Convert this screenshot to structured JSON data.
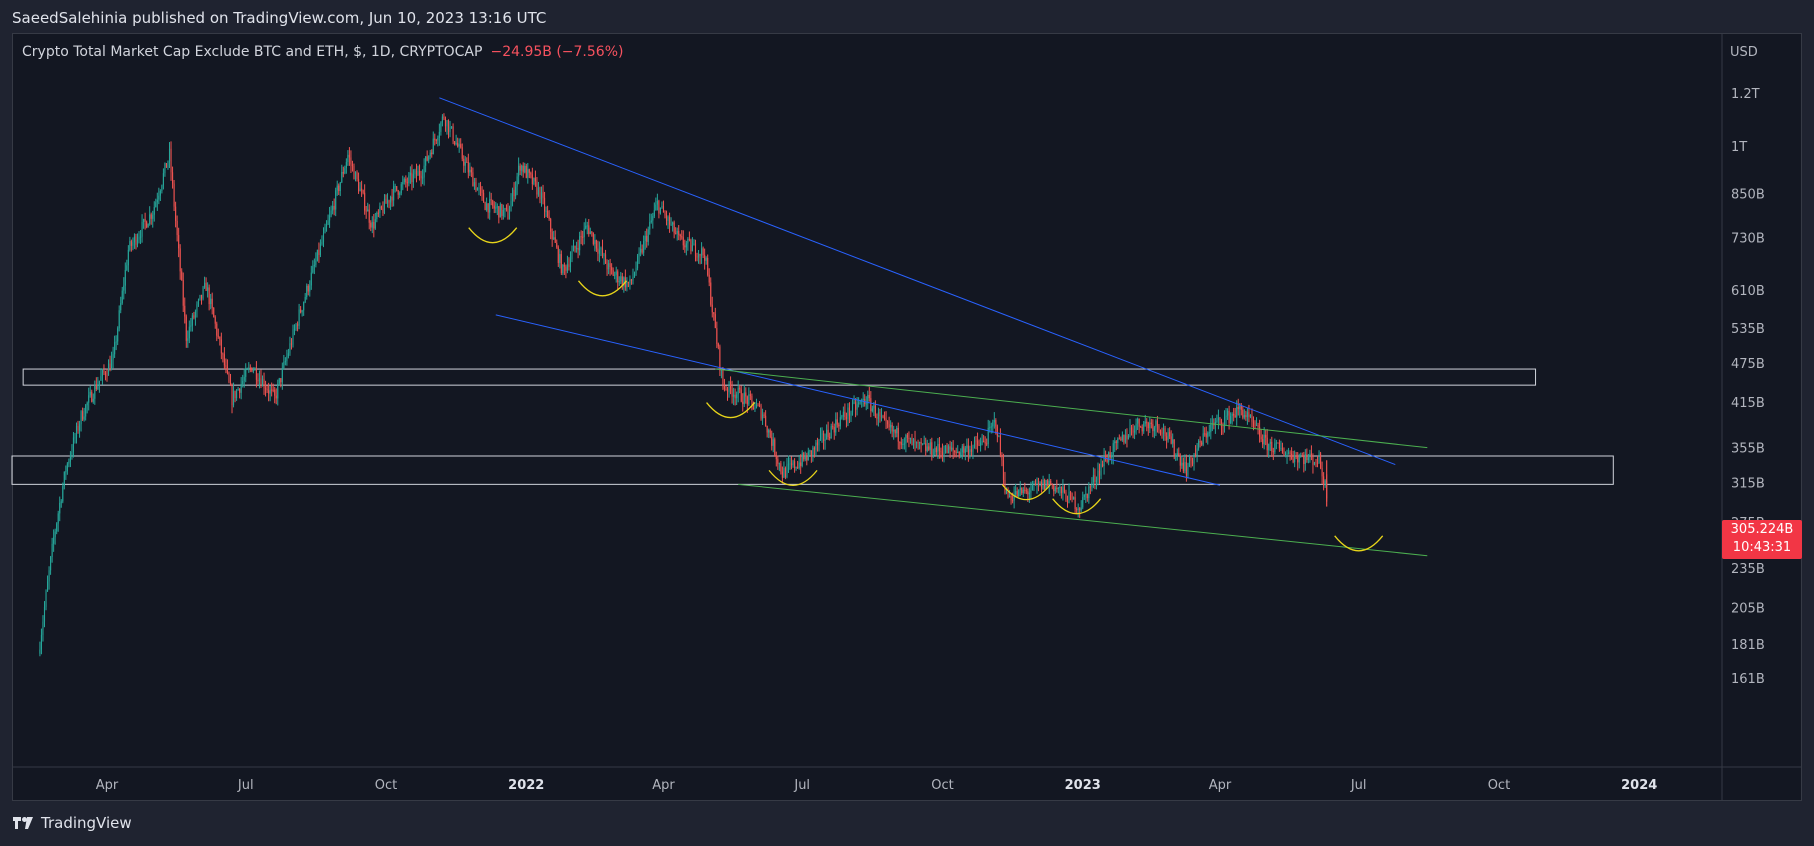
{
  "header": {
    "published": "SaeedSalehinia published on TradingView.com, Jun 10, 2023 13:16 UTC"
  },
  "legend": {
    "symbol": "Crypto Total Market Cap Exclude BTC and ETH, $, 1D, CRYPTOCAP",
    "change": "−24.95B (−7.56%)"
  },
  "price_tag": {
    "price": "305.224B",
    "countdown": "10:43:31"
  },
  "footer": {
    "brand": "TradingView"
  },
  "colors": {
    "up": "#26a69a",
    "down": "#ef5350",
    "trend_blue": "#2962ff",
    "trend_green": "#4caf50",
    "arc_yellow": "#e8d51a",
    "zone": "#d1d4dc"
  },
  "chart_data": {
    "type": "candlestick",
    "title": "Crypto Total Market Cap Exclude BTC and ETH, $, 1D, CRYPTOCAP",
    "y_axis": {
      "unit": "USD",
      "scale": "log",
      "ticks": [
        "1.2T",
        "1T",
        "850B",
        "730B",
        "610B",
        "535B",
        "475B",
        "415B",
        "355B",
        "315B",
        "275B",
        "235B",
        "205B",
        "181B",
        "161B"
      ]
    },
    "x_axis": {
      "ticks": [
        {
          "label": "Apr",
          "major": false
        },
        {
          "label": "Jul",
          "major": false
        },
        {
          "label": "Oct",
          "major": false
        },
        {
          "label": "2022",
          "major": true
        },
        {
          "label": "Apr",
          "major": false
        },
        {
          "label": "Jul",
          "major": false
        },
        {
          "label": "Oct",
          "major": false
        },
        {
          "label": "2023",
          "major": true
        },
        {
          "label": "Apr",
          "major": false
        },
        {
          "label": "Jul",
          "major": false
        },
        {
          "label": "Oct",
          "major": false
        },
        {
          "label": "2024",
          "major": true
        }
      ]
    },
    "price_path": [
      [
        "2021-02-15",
        175
      ],
      [
        "2021-02-25",
        260
      ],
      [
        "2021-03-05",
        330
      ],
      [
        "2021-03-15",
        395
      ],
      [
        "2021-03-25",
        440
      ],
      [
        "2021-04-05",
        480
      ],
      [
        "2021-04-15",
        700
      ],
      [
        "2021-05-01",
        800
      ],
      [
        "2021-05-12",
        970
      ],
      [
        "2021-05-23",
        520
      ],
      [
        "2021-06-05",
        620
      ],
      [
        "2021-06-22",
        420
      ],
      [
        "2021-07-05",
        470
      ],
      [
        "2021-07-20",
        420
      ],
      [
        "2021-08-05",
        560
      ],
      [
        "2021-08-25",
        780
      ],
      [
        "2021-09-06",
        970
      ],
      [
        "2021-09-22",
        760
      ],
      [
        "2021-10-05",
        850
      ],
      [
        "2021-10-25",
        920
      ],
      [
        "2021-11-08",
        1110
      ],
      [
        "2021-11-22",
        940
      ],
      [
        "2021-12-05",
        820
      ],
      [
        "2021-12-20",
        790
      ],
      [
        "2021-12-28",
        940
      ],
      [
        "2022-01-10",
        850
      ],
      [
        "2022-01-25",
        650
      ],
      [
        "2022-02-10",
        760
      ],
      [
        "2022-02-25",
        650
      ],
      [
        "2022-03-10",
        620
      ],
      [
        "2022-03-28",
        820
      ],
      [
        "2022-04-12",
        720
      ],
      [
        "2022-04-28",
        690
      ],
      [
        "2022-05-10",
        440
      ],
      [
        "2022-05-25",
        420
      ],
      [
        "2022-06-05",
        400
      ],
      [
        "2022-06-18",
        325
      ],
      [
        "2022-07-05",
        345
      ],
      [
        "2022-07-25",
        390
      ],
      [
        "2022-08-12",
        420
      ],
      [
        "2022-08-25",
        380
      ],
      [
        "2022-09-15",
        355
      ],
      [
        "2022-10-10",
        350
      ],
      [
        "2022-10-28",
        360
      ],
      [
        "2022-11-05",
        390
      ],
      [
        "2022-11-12",
        300
      ],
      [
        "2022-11-25",
        305
      ],
      [
        "2022-12-10",
        315
      ],
      [
        "2022-12-30",
        290
      ],
      [
        "2023-01-15",
        340
      ],
      [
        "2023-02-05",
        385
      ],
      [
        "2023-02-20",
        385
      ],
      [
        "2023-03-10",
        330
      ],
      [
        "2023-03-25",
        380
      ],
      [
        "2023-04-15",
        405
      ],
      [
        "2023-05-01",
        360
      ],
      [
        "2023-05-20",
        345
      ],
      [
        "2023-06-05",
        340
      ],
      [
        "2023-06-10",
        305
      ]
    ],
    "last_price": "305.224B",
    "change": "−24.95B (−7.56%)",
    "drawings": {
      "trend_lines": [
        {
          "color": "blue",
          "from": [
            "2021-11-05",
            1180
          ],
          "to": [
            "2023-07-25",
            335
          ]
        },
        {
          "color": "blue",
          "from": [
            "2021-12-12",
            560
          ],
          "to": [
            "2023-04-01",
            312
          ]
        },
        {
          "color": "green",
          "from": [
            "2022-05-05",
            465
          ],
          "to": [
            "2023-08-15",
            355
          ]
        },
        {
          "color": "green",
          "from": [
            "2022-05-20",
            313
          ],
          "to": [
            "2023-08-15",
            245
          ]
        }
      ],
      "zones": [
        {
          "from": "2021-02-05",
          "to": "2023-10-25",
          "top": 465,
          "bottom": 440
        },
        {
          "from": "2021-01-10",
          "to": "2023-12-15",
          "top": 345,
          "bottom": 313
        }
      ],
      "arcs": [
        {
          "date": "2021-12-10",
          "price": 720
        },
        {
          "date": "2022-02-20",
          "price": 600
        },
        {
          "date": "2022-05-15",
          "price": 395
        },
        {
          "date": "2022-06-25",
          "price": 313
        },
        {
          "date": "2022-11-25",
          "price": 298
        },
        {
          "date": "2022-12-28",
          "price": 284
        },
        {
          "date": "2023-07-01",
          "price": 250
        }
      ]
    }
  }
}
